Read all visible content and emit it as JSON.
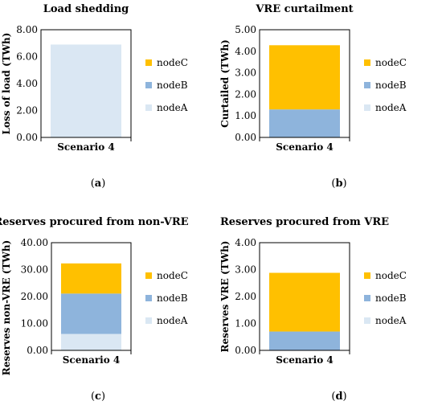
{
  "colors": {
    "nodeA": "#dae7f3",
    "nodeB": "#8eb4dc",
    "nodeC": "#ffc000",
    "frame": "#000000"
  },
  "legend": [
    "nodeC",
    "nodeB",
    "nodeA"
  ],
  "chart_data": [
    {
      "type": "bar",
      "stacked": true,
      "title": "Load shedding",
      "ylabel": "Loss of load (TWh)",
      "categories": [
        "Scenario 4"
      ],
      "ylim": [
        0,
        8
      ],
      "yticks": [
        "0.00",
        "2.00",
        "4.00",
        "6.00",
        "8.00"
      ],
      "series": [
        {
          "name": "nodeA",
          "values": [
            6.9
          ]
        },
        {
          "name": "nodeB",
          "values": [
            0
          ]
        },
        {
          "name": "nodeC",
          "values": [
            0
          ]
        }
      ],
      "legend_position": "right",
      "caption": "a"
    },
    {
      "type": "bar",
      "stacked": true,
      "title": "VRE curtailment",
      "ylabel": "Curtailed (TWh)",
      "categories": [
        "Scenario 4"
      ],
      "ylim": [
        0,
        5
      ],
      "yticks": [
        "0.00",
        "1.00",
        "2.00",
        "3.00",
        "4.00",
        "5.00"
      ],
      "series": [
        {
          "name": "nodeA",
          "values": [
            0
          ]
        },
        {
          "name": "nodeB",
          "values": [
            1.3
          ]
        },
        {
          "name": "nodeC",
          "values": [
            2.98
          ]
        }
      ],
      "legend_position": "right",
      "caption": "b"
    },
    {
      "type": "bar",
      "stacked": true,
      "title": "Reserves procured from non-VRE",
      "ylabel": "Reserves non-VRE (TWh)",
      "categories": [
        "Scenario 4"
      ],
      "ylim": [
        0,
        40
      ],
      "yticks": [
        "0.00",
        "10.00",
        "20.00",
        "30.00",
        "40.00"
      ],
      "series": [
        {
          "name": "nodeA",
          "values": [
            6.1
          ]
        },
        {
          "name": "nodeB",
          "values": [
            15.0
          ]
        },
        {
          "name": "nodeC",
          "values": [
            11.2
          ]
        }
      ],
      "legend_position": "right",
      "caption": "c"
    },
    {
      "type": "bar",
      "stacked": true,
      "title": "Reserves procured from VRE",
      "ylabel": "Reserves VRE (TWh)",
      "categories": [
        "Scenario 4"
      ],
      "ylim": [
        0,
        4
      ],
      "yticks": [
        "0.00",
        "1.00",
        "2.00",
        "3.00",
        "4.00"
      ],
      "series": [
        {
          "name": "nodeA",
          "values": [
            0
          ]
        },
        {
          "name": "nodeB",
          "values": [
            0.7
          ]
        },
        {
          "name": "nodeC",
          "values": [
            2.18
          ]
        }
      ],
      "legend_position": "right",
      "caption": "d"
    }
  ]
}
